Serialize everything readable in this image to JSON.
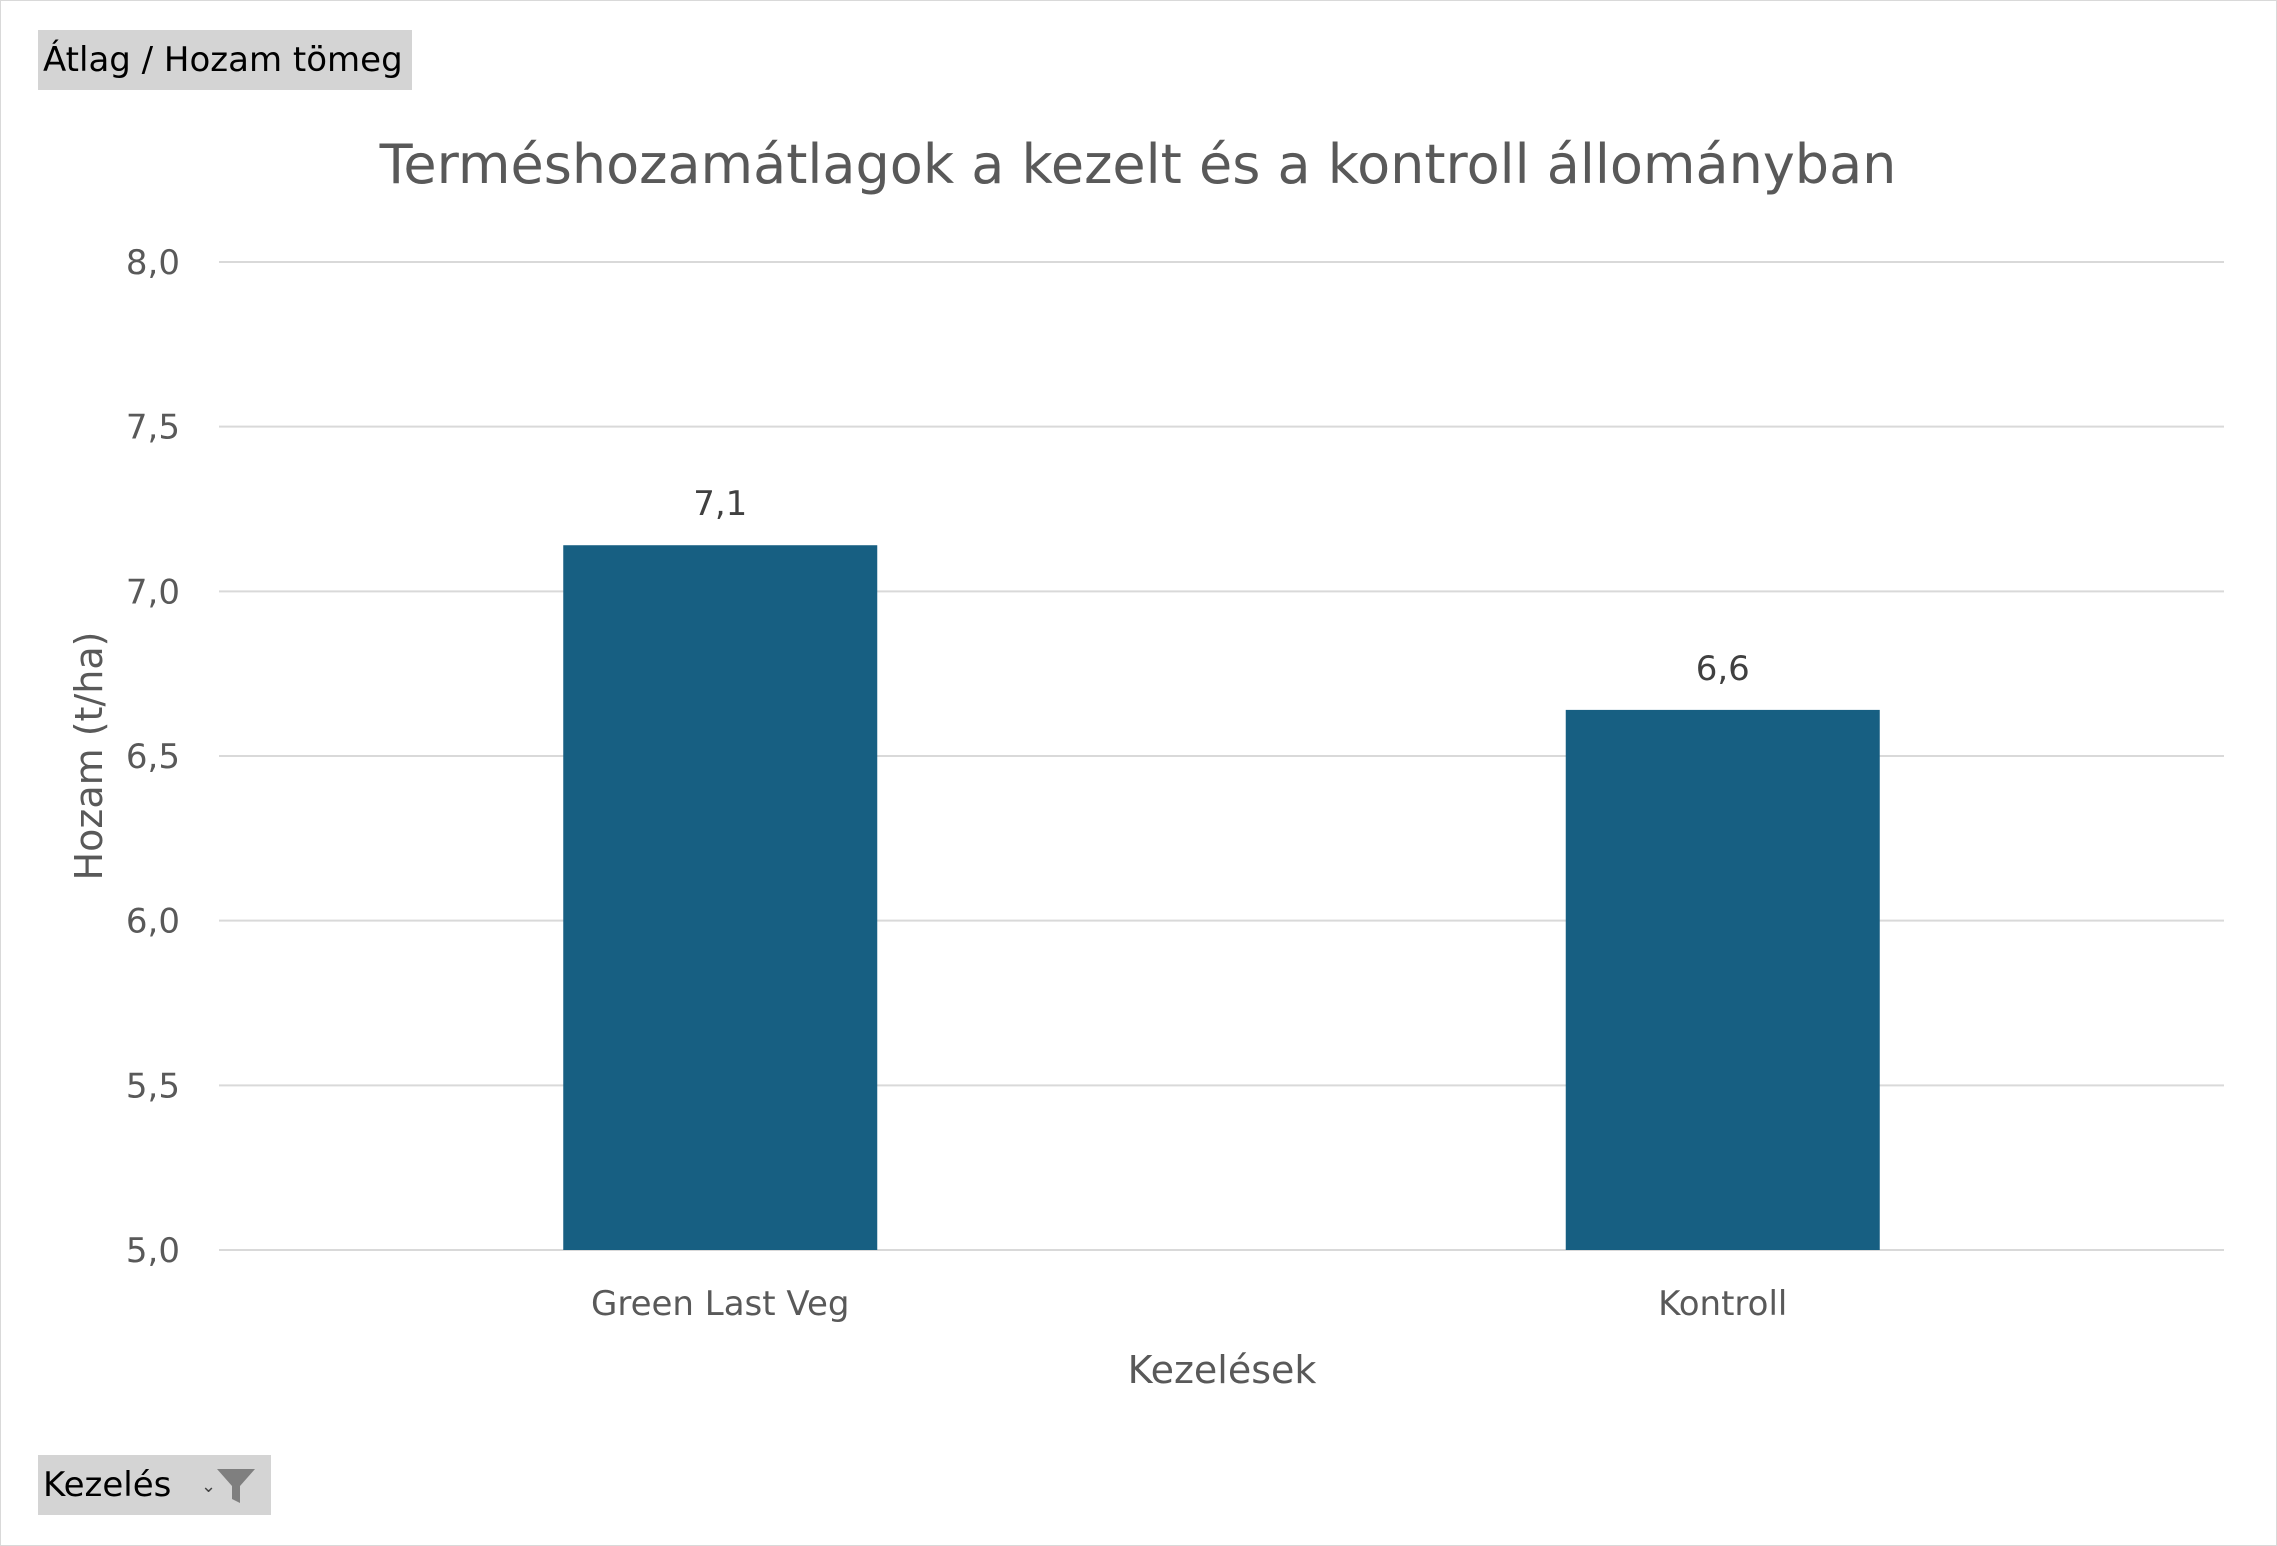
{
  "pivot": {
    "value_field_label": "Átlag / Hozam tömeg",
    "filter_field_label": "Kezelés",
    "filter_icon": "filter-funnel-icon",
    "dropdown_icon": "dropdown-arrow-icon"
  },
  "chart_data": {
    "type": "bar",
    "title": "Terméshozamátlagok a kezelt és a kontroll állományban",
    "xlabel": "Kezelések",
    "ylabel": "Hozam (t/ha)",
    "categories": [
      "Green Last Veg",
      "Kontroll"
    ],
    "values": [
      7.14,
      6.64
    ],
    "data_labels": [
      "7,1",
      "6,6"
    ],
    "ylim": [
      5.0,
      8.0
    ],
    "yticks": [
      5.0,
      5.5,
      6.0,
      6.5,
      7.0,
      7.5,
      8.0
    ],
    "ytick_labels": [
      "5,0",
      "5,5",
      "6,0",
      "6,5",
      "7,0",
      "7,5",
      "8,0"
    ],
    "grid": true,
    "legend": "none",
    "bar_color": "#175f82",
    "gridline_color": "#d9d9d9"
  }
}
